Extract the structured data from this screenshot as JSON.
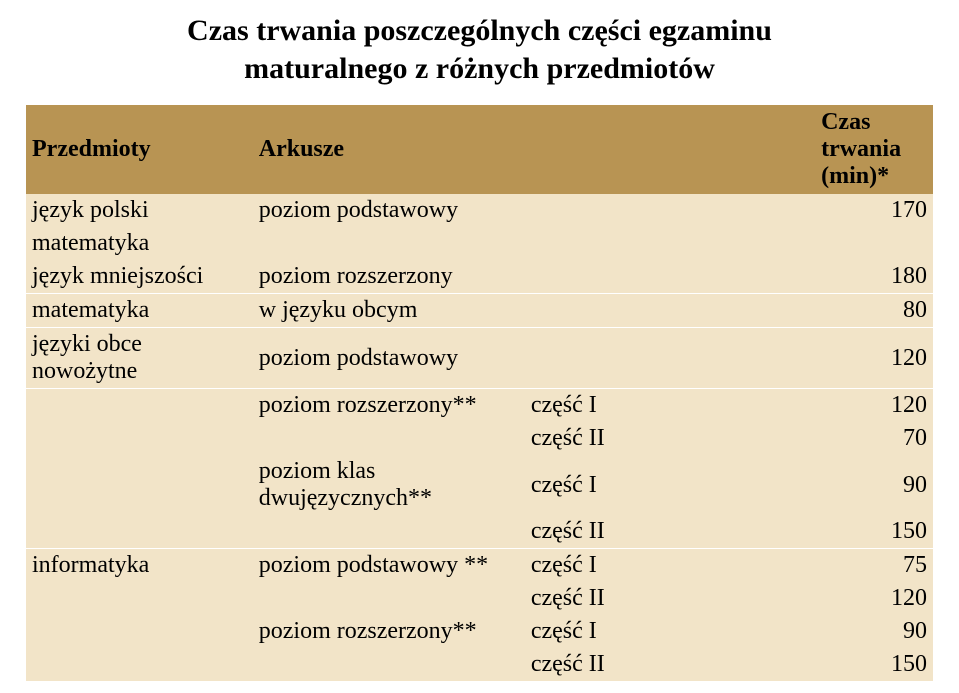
{
  "title_line1": "Czas trwania poszczególnych części egzaminu",
  "title_line2": "maturalnego z różnych przedmiotów",
  "headers": {
    "c1": "Przedmioty",
    "c2": "Arkusze",
    "c3_line1": "Czas trwania",
    "c3_line2": "(min)*"
  },
  "rows": {
    "r1_c1": "język polski",
    "r1_c2": "poziom podstawowy",
    "r1_c4": "170",
    "r2_c1": "matematyka",
    "r3_c1": "język mniejszości",
    "r3_c2": "poziom rozszerzony",
    "r3_c4": "180",
    "r4_c1": "matematyka",
    "r4_c2": "w języku obcym",
    "r4_c4": "80",
    "r5_c1": "języki obce nowożytne",
    "r5_c2": "poziom podstawowy",
    "r5_c4": "120",
    "r6_c2": "poziom rozszerzony**",
    "r6_c3": "część I",
    "r6_c4": "120",
    "r7_c3": "część II",
    "r7_c4": "70",
    "r8_c2": "poziom klas dwujęzycznych**",
    "r8_c3": "część I",
    "r8_c4": "90",
    "r9_c3": "część II",
    "r9_c4": "150",
    "r10_c1": "informatyka",
    "r10_c2": "poziom podstawowy **",
    "r10_c3": "część I",
    "r10_c4": "75",
    "r11_c3": "część II",
    "r11_c4": "120",
    "r12_c2": "poziom rozszerzony**",
    "r12_c3": "część I",
    "r12_c4": "90",
    "r13_c3": "część II",
    "r13_c4": "150"
  }
}
